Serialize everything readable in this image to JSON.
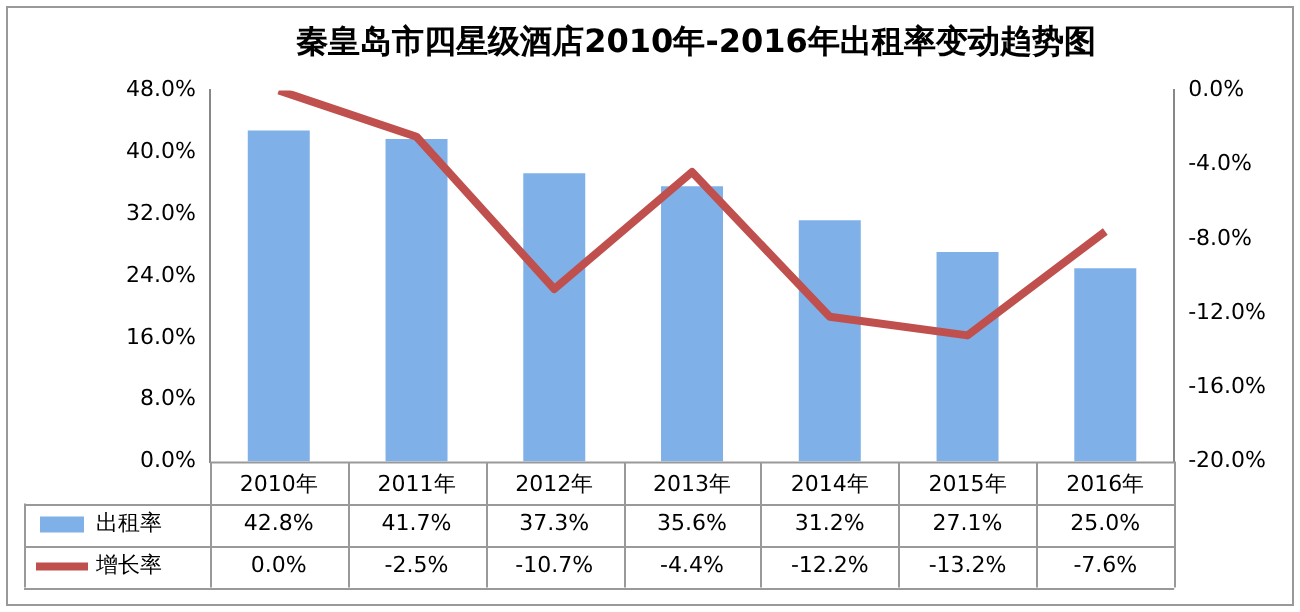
{
  "chart_data": {
    "type": "bar",
    "title": "秦皇岛市四星级酒店2010年-2016年出租率变动趋势图",
    "categories": [
      "2010年",
      "2011年",
      "2012年",
      "2013年",
      "2014年",
      "2015年",
      "2016年"
    ],
    "series": [
      {
        "name": "出租率",
        "color": "#7fb0e8",
        "values": [
          42.8,
          41.7,
          37.3,
          35.6,
          31.2,
          27.1,
          25.0
        ],
        "value_labels": [
          "42.8%",
          "41.7%",
          "37.3%",
          "35.6%",
          "31.2%",
          "27.1%",
          "25.0%"
        ]
      },
      {
        "name": "增长率",
        "type": "line",
        "axis": "y2",
        "color": "#c0504d",
        "values": [
          0.0,
          -2.5,
          -10.7,
          -4.4,
          -12.2,
          -13.2,
          -7.6
        ],
        "value_labels": [
          "0.0%",
          "-2.5%",
          "-10.7%",
          "-4.4%",
          "-12.2%",
          "-13.2%",
          "-7.6%"
        ]
      }
    ],
    "ylim": [
      0,
      48
    ],
    "yticks": [
      {
        "value": 0,
        "label": "0.0%"
      },
      {
        "value": 8,
        "label": "8.0%"
      },
      {
        "value": 16,
        "label": "16.0%"
      },
      {
        "value": 24,
        "label": "24.0%"
      },
      {
        "value": 32,
        "label": "32.0%"
      },
      {
        "value": 40,
        "label": "40.0%"
      },
      {
        "value": 48,
        "label": "48.0%"
      }
    ],
    "y2lim": [
      -20,
      0
    ],
    "y2ticks": [
      {
        "value": -20,
        "label": "-20.0%"
      },
      {
        "value": -16,
        "label": "-16.0%"
      },
      {
        "value": -12,
        "label": "-12.0%"
      },
      {
        "value": -8,
        "label": "-8.0%"
      },
      {
        "value": -4,
        "label": "-4.0%"
      },
      {
        "value": 0,
        "label": "0.0%"
      }
    ],
    "legend": "bottom",
    "marker": "none",
    "grid": false
  }
}
